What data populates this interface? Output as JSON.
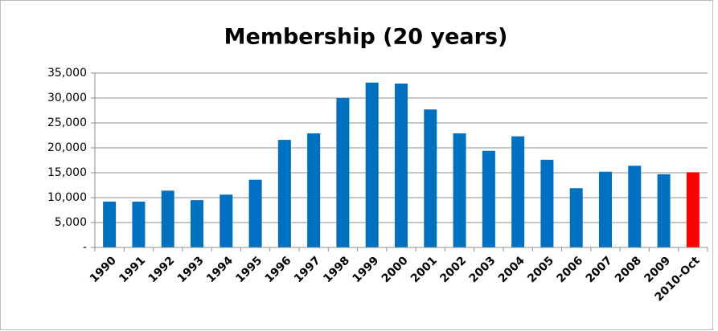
{
  "chart_data": {
    "type": "bar",
    "title": "Membership (20 years)",
    "categories": [
      "1990",
      "1991",
      "1992",
      "1993",
      "1994",
      "1995",
      "1996",
      "1997",
      "1998",
      "1999",
      "2000",
      "2001",
      "2002",
      "2003",
      "2004",
      "2005",
      "2006",
      "2007",
      "2008",
      "2009",
      "2010-Oct"
    ],
    "values": [
      9200,
      9200,
      11400,
      9500,
      10600,
      13600,
      21600,
      22900,
      30000,
      33100,
      32900,
      27700,
      22900,
      19400,
      22300,
      17600,
      11900,
      15200,
      16400,
      14700,
      15100
    ],
    "colors": [
      "#0070c0",
      "#0070c0",
      "#0070c0",
      "#0070c0",
      "#0070c0",
      "#0070c0",
      "#0070c0",
      "#0070c0",
      "#0070c0",
      "#0070c0",
      "#0070c0",
      "#0070c0",
      "#0070c0",
      "#0070c0",
      "#0070c0",
      "#0070c0",
      "#0070c0",
      "#0070c0",
      "#0070c0",
      "#0070c0",
      "#ff0000"
    ],
    "ylim": [
      0,
      35000
    ],
    "yticks": [
      {
        "value": 0,
        "label": "-"
      },
      {
        "value": 5000,
        "label": "5,000"
      },
      {
        "value": 10000,
        "label": "10,000"
      },
      {
        "value": 15000,
        "label": "15,000"
      },
      {
        "value": 20000,
        "label": "20,000"
      },
      {
        "value": 25000,
        "label": "25,000"
      },
      {
        "value": 30000,
        "label": "30,000"
      },
      {
        "value": 35000,
        "label": "35,000"
      }
    ],
    "grid": true
  }
}
